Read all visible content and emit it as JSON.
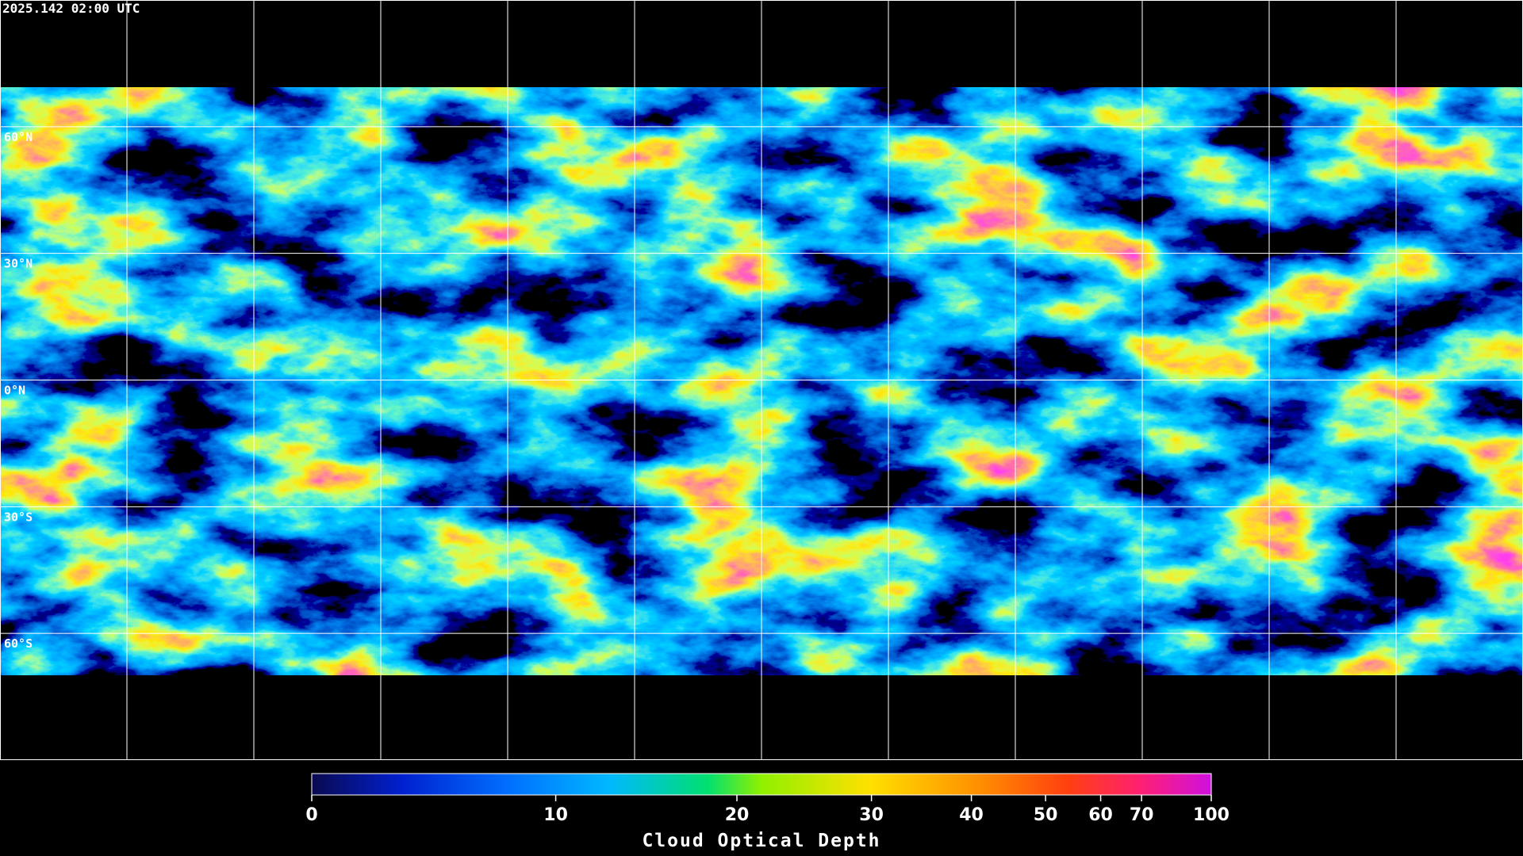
{
  "header": {
    "timestamp": "2025.142 02:00 UTC"
  },
  "map": {
    "latlim": [
      -90,
      90
    ],
    "lat_ticks": [
      {
        "value": 60,
        "label": "60°N"
      },
      {
        "value": 30,
        "label": "30°N"
      },
      {
        "value": 0,
        "label": "0°N"
      },
      {
        "value": -30,
        "label": "30°S"
      },
      {
        "value": -60,
        "label": "60°S"
      }
    ]
  },
  "colorbar": {
    "title": "Cloud Optical Depth",
    "lim": [
      0,
      100
    ],
    "ticks": [
      0,
      10,
      20,
      30,
      40,
      50,
      60,
      70,
      100
    ],
    "scale": "exponential"
  }
}
